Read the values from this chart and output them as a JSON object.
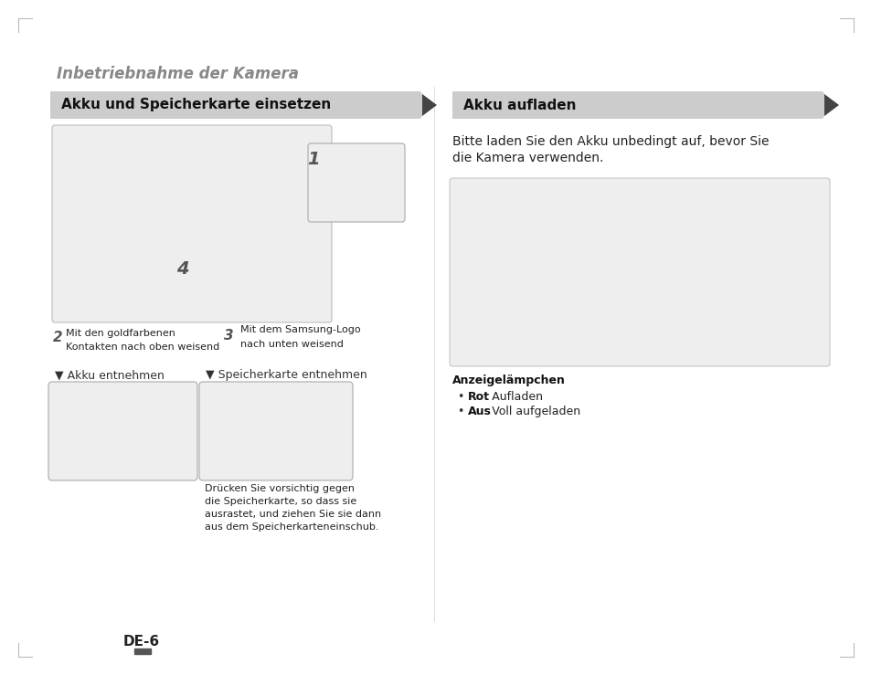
{
  "page_bg": "#ffffff",
  "title": "Inbetriebnahme der Kamera",
  "title_color": "#888888",
  "title_fontsize": 12,
  "banner1_text": "Akku und Speicherkarte einsetzen",
  "banner2_text": "Akku aufladen",
  "banner_bg": "#cccccc",
  "banner_text_color": "#111111",
  "banner_fontsize": 11,
  "body_fontsize": 9,
  "small_fontsize": 8,
  "section2_intro_line1": "Bitte laden Sie den Akku unbedingt auf, bevor Sie",
  "section2_intro_line2": "die Kamera verwenden.",
  "label_step1": "1",
  "label_step2": "2",
  "label_step2_text_line1": "Mit den goldfarbenen",
  "label_step2_text_line2": "Kontakten nach oben weisend",
  "label_step3": "3",
  "label_step3_text_line1": "Mit dem Samsung-Logo",
  "label_step3_text_line2": "nach unten weisend",
  "label_step4": "4",
  "caption_akku": "▼ Akku entnehmen",
  "caption_speicher": "▼ Speicherkarte entnehmen",
  "caption_speicher_detail_line1": "Drücken Sie vorsichtig gegen",
  "caption_speicher_detail_line2": "die Speicherkarte, so dass sie",
  "caption_speicher_detail_line3": "ausrastet, und ziehen Sie sie dann",
  "caption_speicher_detail_line4": "aus dem Speicherkarteneinschub.",
  "anzeige_title": "Anzeigelämpchen",
  "anzeige_bullet1_bold": "Rot",
  "anzeige_bullet1_rest": ": Aufladen",
  "anzeige_bullet2_bold": "Aus",
  "anzeige_bullet2_rest": ": Voll aufgeladen",
  "page_label": "DE-6",
  "tick_color": "#bbbbbb",
  "arrow_color": "#444444",
  "img_border_color": "#aaaaaa",
  "img_fill_color": "#eeeeee",
  "divider_color": "#dddddd"
}
